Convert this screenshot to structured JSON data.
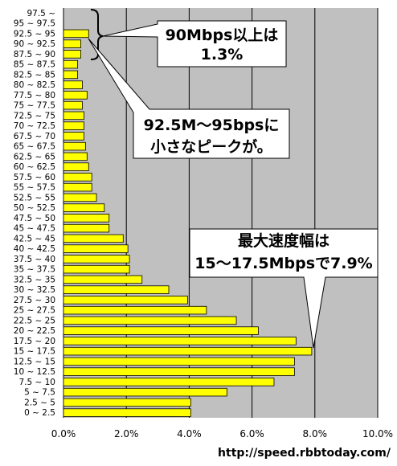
{
  "chart_data": {
    "type": "bar",
    "orientation": "horizontal",
    "categories": [
      "0 ~ 2.5",
      "2.5 ~ 5",
      "5 ~ 7.5",
      "7.5 ~ 10",
      "10 ~ 12.5",
      "12.5 ~ 15",
      "15 ~ 17.5",
      "17.5 ~ 20",
      "20 ~ 22.5",
      "22.5 ~ 25",
      "25 ~ 27.5",
      "27.5 ~ 30",
      "30 ~ 32.5",
      "32.5 ~ 35",
      "35 ~ 37.5",
      "37.5 ~ 40",
      "40 ~ 42.5",
      "42.5 ~ 45",
      "45 ~ 47.5",
      "47.5 ~ 50",
      "50 ~ 52.5",
      "52.5 ~ 55",
      "55 ~ 57.5",
      "57.5 ~ 60",
      "60 ~ 62.5",
      "62.5 ~ 65",
      "65 ~ 67.5",
      "67.5 ~ 70",
      "70 ~ 72.5",
      "72.5 ~ 75",
      "75 ~ 77.5",
      "77.5 ~ 80",
      "80 ~ 82.5",
      "82.5 ~ 85",
      "85 ~ 87.5",
      "87.5 ~ 90",
      "90 ~ 92.5",
      "92.5 ~ 95",
      "95 ~ 97.5",
      "97.5 ~"
    ],
    "values": [
      4.05,
      4.05,
      5.2,
      6.7,
      7.35,
      7.35,
      7.9,
      7.4,
      6.2,
      5.5,
      4.55,
      3.95,
      3.35,
      2.5,
      2.1,
      2.1,
      2.05,
      1.9,
      1.45,
      1.45,
      1.3,
      1.05,
      0.9,
      0.9,
      0.8,
      0.75,
      0.7,
      0.65,
      0.65,
      0.65,
      0.6,
      0.75,
      0.6,
      0.45,
      0.45,
      0.55,
      0.55,
      0.8,
      0.0,
      0.0
    ],
    "xlim": [
      0,
      10
    ],
    "xticks": [
      "0.0%",
      "2.0%",
      "4.0%",
      "6.0%",
      "8.0%",
      "10.0%"
    ],
    "grid": true,
    "colors": {
      "bar": "#ffff00",
      "plot_bg": "#c0c0c0",
      "bar_edge": "#000000"
    }
  },
  "annotations": {
    "top_callout": [
      "90Mbps以上は",
      "1.3%"
    ],
    "mid_callout": [
      "92.5M～95bpsに",
      "小さなピークが。"
    ],
    "right_callout": [
      "最大速度幅は",
      "15～17.5Mbpsで7.9%"
    ]
  },
  "source_url": "http://speed.rbbtoday.com/"
}
